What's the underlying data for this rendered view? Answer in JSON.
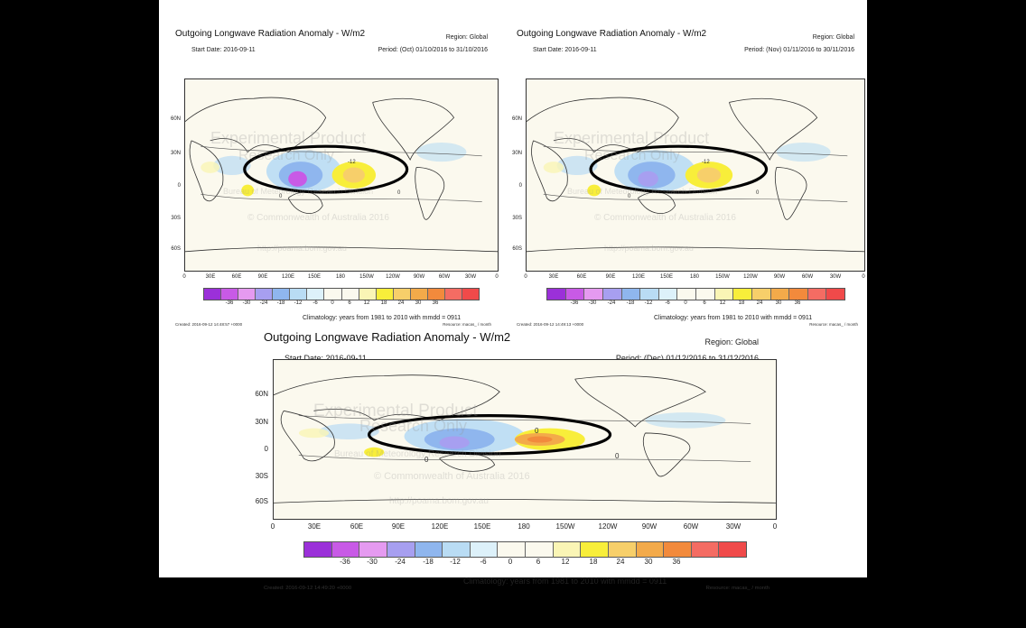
{
  "colors": {
    "background": "#000000",
    "sheet": "#ffffff",
    "ellipse": "#000000",
    "legend_swatches": [
      "#9b30d9",
      "#c85ae6",
      "#e59af0",
      "#a79ff0",
      "#8fb6ee",
      "#b9dcf4",
      "#ddf1fa",
      "#fbf9ee",
      "#fbf9ee",
      "#faf5b5",
      "#f8ee3a",
      "#f7cf6a",
      "#f3aa4a",
      "#f28a3c",
      "#f46c63",
      "#f04a4a"
    ]
  },
  "legend_ticks": [
    "-36",
    "-30",
    "-24",
    "-18",
    "-12",
    "-6",
    "0",
    "6",
    "12",
    "18",
    "24",
    "30",
    "36"
  ],
  "lat_labels": [
    "60N",
    "30N",
    "0",
    "30S",
    "60S"
  ],
  "lon_labels": [
    "0",
    "30E",
    "60E",
    "90E",
    "120E",
    "150E",
    "180",
    "150W",
    "120W",
    "90W",
    "60W",
    "30W",
    "0"
  ],
  "panels": [
    {
      "title": "Outgoing Longwave Radiation Anomaly - W/m2",
      "region": "Region: Global",
      "start_date": "Start Date: 2016-09-11",
      "period": "Period: (Oct) 01/10/2016 to 31/10/2016",
      "climatology": "Climatology: years from 1981 to 2010 with mmdd = 0911",
      "created": "Created: 2016-09-12 14:48:57 +0000",
      "resource": "Resource: macas_ / month",
      "contour_labels": [
        "-12",
        "0",
        "0"
      ],
      "watermark": [
        "Experimental Product",
        "Research Only",
        "Bureau of Meteorology Research Division",
        "© Commonwealth of Australia 2016",
        "http://poama.bom.gov.au"
      ]
    },
    {
      "title": "Outgoing Longwave Radiation Anomaly - W/m2",
      "region": "Region: Global",
      "start_date": "Start Date: 2016-09-11",
      "period": "Period: (Nov) 01/11/2016 to 30/11/2016",
      "climatology": "Climatology: years from 1981 to 2010 with mmdd = 0911",
      "created": "Created: 2016-09-12 14:49:13 +0000",
      "resource": "Resource: macas_ / month",
      "contour_labels": [
        "-12",
        "0",
        "0"
      ],
      "watermark": [
        "Experimental Product",
        "Research Only",
        "Bureau of Meteorology Research Division",
        "© Commonwealth of Australia 2016",
        "http://poama.bom.gov.au"
      ]
    },
    {
      "title": "Outgoing Longwave Radiation Anomaly - W/m2",
      "region": "Region: Global",
      "start_date": "Start Date: 2016-09-11",
      "period": "Period: (Dec) 01/12/2016 to 31/12/2016",
      "climatology": "Climatology: years from 1981 to 2010 with mmdd = 0911",
      "created": "Created: 2016-09-12 14:49:20 +0000",
      "resource": "Resource: macas_ / month",
      "contour_labels": [
        "0",
        "0",
        "0"
      ],
      "watermark": [
        "Experimental Product",
        "Research Only",
        "Bureau of Meteorology Research Division",
        "© Commonwealth of Australia 2016",
        "http://poama.bom.gov.au"
      ]
    }
  ]
}
